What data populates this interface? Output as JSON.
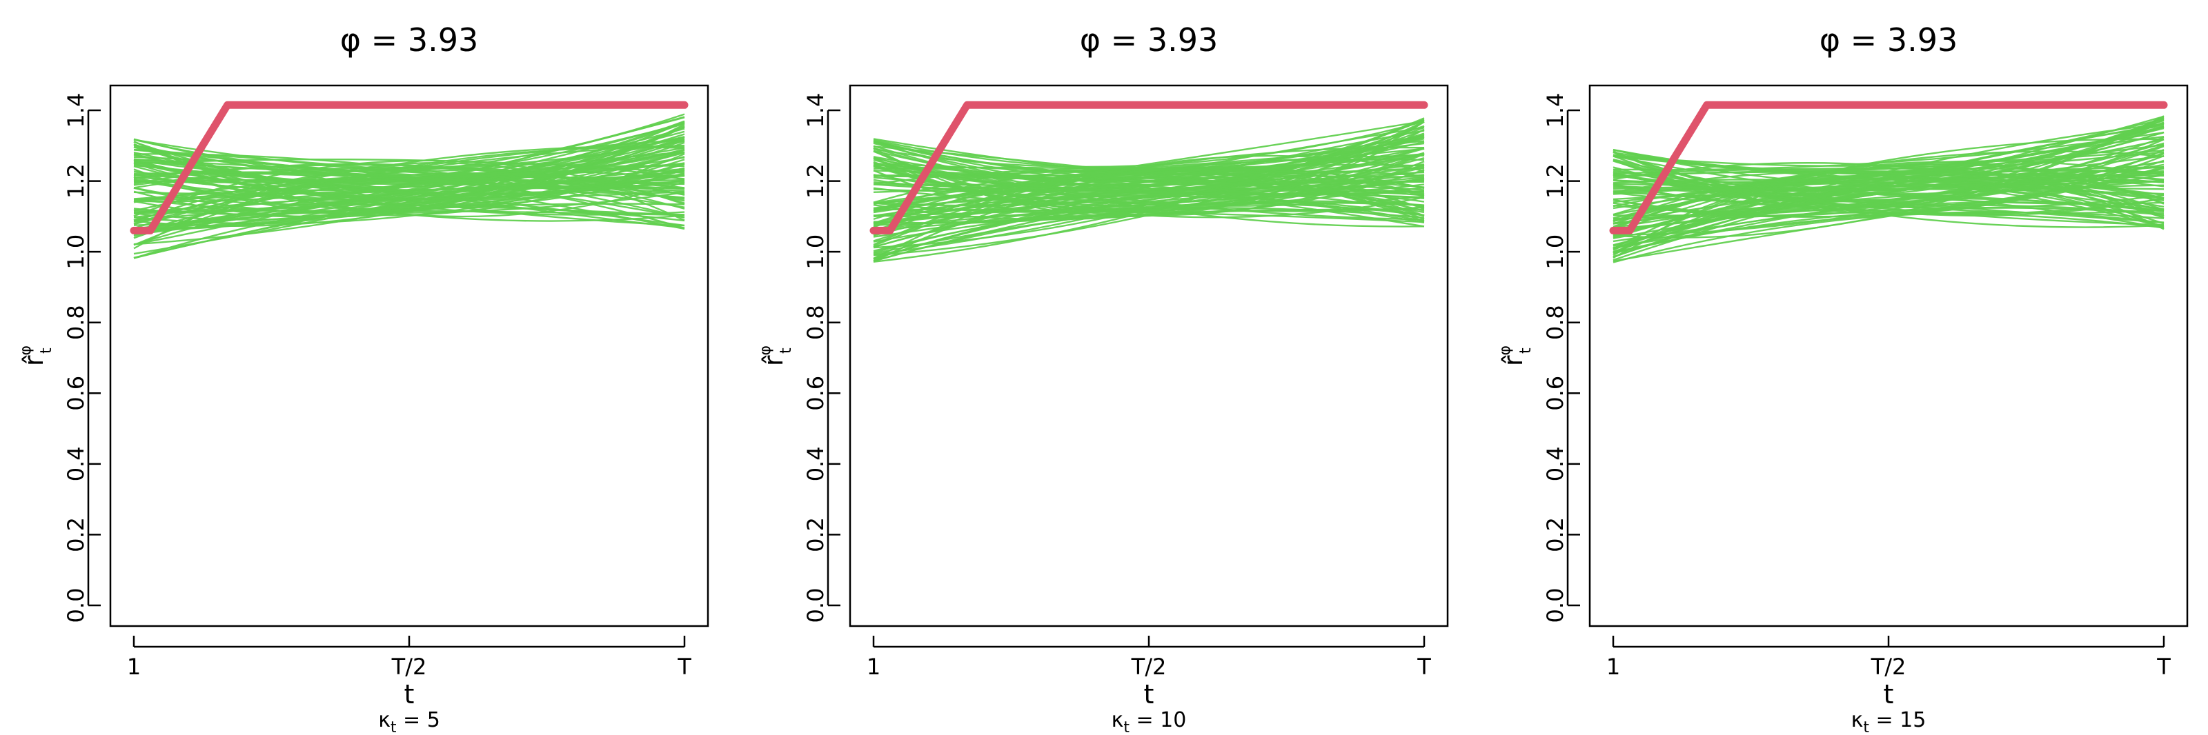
{
  "colors": {
    "simulation_lines": "#61d04f",
    "observed_line": "#df536b",
    "axis": "#000000",
    "background": "#ffffff"
  },
  "chart_data": [
    {
      "type": "line",
      "title": "φ = 3.93",
      "xlabel": "t",
      "ylabel": "r̂",
      "ylabel_sup": "φ",
      "ylabel_sub": "t",
      "caption": "κ",
      "caption_sub": "t",
      "caption_value": " = 5",
      "x_ticks": [
        "1",
        "T/2",
        "T"
      ],
      "y_ticks": [
        "0.0",
        "0.2",
        "0.4",
        "0.6",
        "0.8",
        "1.0",
        "1.2",
        "1.4"
      ],
      "xlim": [
        0,
        1
      ],
      "ylim": [
        0.0,
        1.4
      ],
      "simulation_band": {
        "color": "#61d04f",
        "count": 100,
        "start_range": [
          0.98,
          1.32
        ],
        "mid_range": [
          1.1,
          1.26
        ],
        "end_range": [
          1.06,
          1.39
        ]
      },
      "series": [
        {
          "color": "#df536b",
          "x": [
            0,
            0.03,
            0.17,
            1
          ],
          "values": [
            1.06,
            1.06,
            1.415,
            1.415
          ]
        }
      ]
    },
    {
      "type": "line",
      "title": "φ = 3.93",
      "xlabel": "t",
      "ylabel": "r̂",
      "ylabel_sup": "φ",
      "ylabel_sub": "t",
      "caption": "κ",
      "caption_sub": "t",
      "caption_value": " = 10",
      "x_ticks": [
        "1",
        "T/2",
        "T"
      ],
      "y_ticks": [
        "0.0",
        "0.2",
        "0.4",
        "0.6",
        "0.8",
        "1.0",
        "1.2",
        "1.4"
      ],
      "xlim": [
        0,
        1
      ],
      "ylim": [
        0.0,
        1.4
      ],
      "simulation_band": {
        "color": "#61d04f",
        "count": 100,
        "start_range": [
          0.97,
          1.32
        ],
        "mid_range": [
          1.1,
          1.25
        ],
        "end_range": [
          1.07,
          1.38
        ]
      },
      "series": [
        {
          "color": "#df536b",
          "x": [
            0,
            0.03,
            0.17,
            1
          ],
          "values": [
            1.06,
            1.06,
            1.415,
            1.415
          ]
        }
      ]
    },
    {
      "type": "line",
      "title": "φ = 3.93",
      "xlabel": "t",
      "ylabel": "r̂",
      "ylabel_sup": "φ",
      "ylabel_sub": "t",
      "caption": "κ",
      "caption_sub": "t",
      "caption_value": " = 15",
      "x_ticks": [
        "1",
        "T/2",
        "T"
      ],
      "y_ticks": [
        "0.0",
        "0.2",
        "0.4",
        "0.6",
        "0.8",
        "1.0",
        "1.2",
        "1.4"
      ],
      "xlim": [
        0,
        1
      ],
      "ylim": [
        0.0,
        1.4
      ],
      "simulation_band": {
        "color": "#61d04f",
        "count": 100,
        "start_range": [
          0.97,
          1.31
        ],
        "mid_range": [
          1.1,
          1.26
        ],
        "end_range": [
          1.06,
          1.39
        ]
      },
      "series": [
        {
          "color": "#df536b",
          "x": [
            0,
            0.03,
            0.17,
            1
          ],
          "values": [
            1.06,
            1.06,
            1.415,
            1.415
          ]
        }
      ]
    }
  ]
}
